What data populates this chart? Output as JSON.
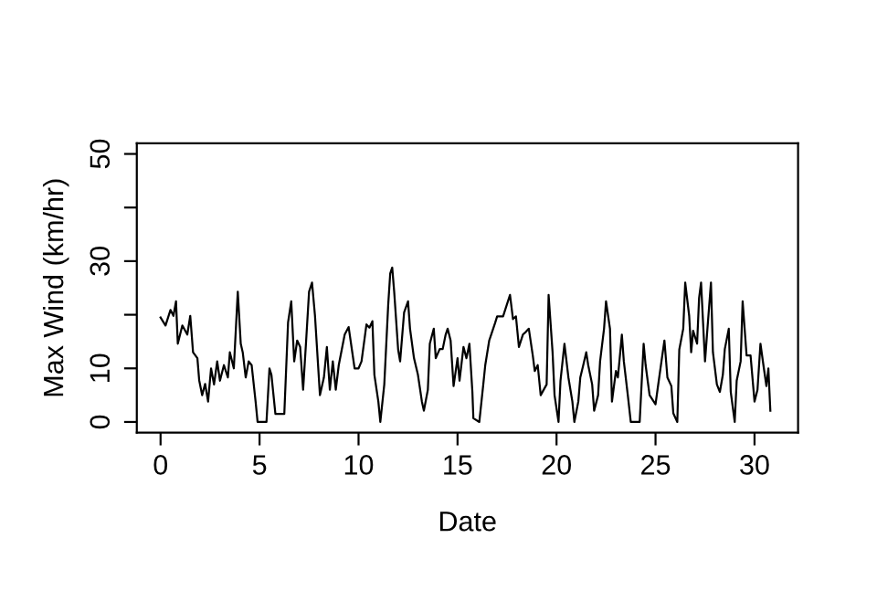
{
  "chart_data": {
    "type": "line",
    "xlabel": "Date",
    "ylabel": "Max Wind (km/hr)",
    "x": [
      0,
      0.25,
      0.5,
      0.65,
      0.78,
      0.87,
      1.1,
      1.35,
      1.5,
      1.64,
      1.86,
      1.95,
      2.1,
      2.25,
      2.4,
      2.55,
      2.7,
      2.86,
      3.0,
      3.2,
      3.4,
      3.5,
      3.7,
      3.9,
      4.05,
      4.15,
      4.3,
      4.45,
      4.6,
      4.8,
      4.9,
      5.35,
      5.5,
      5.6,
      5.8,
      6.25,
      6.44,
      6.6,
      6.75,
      6.9,
      7.05,
      7.2,
      7.35,
      7.5,
      7.65,
      7.8,
      8.05,
      8.25,
      8.4,
      8.55,
      8.7,
      8.85,
      9.0,
      9.3,
      9.5,
      9.8,
      10.0,
      10.15,
      10.4,
      10.55,
      10.7,
      10.8,
      11.0,
      11.1,
      11.3,
      11.5,
      11.6,
      11.7,
      11.8,
      12.0,
      12.1,
      12.3,
      12.5,
      12.6,
      12.8,
      13.0,
      13.2,
      13.3,
      13.5,
      13.6,
      13.8,
      13.9,
      14.1,
      14.25,
      14.4,
      14.5,
      14.65,
      14.8,
      15.0,
      15.1,
      15.3,
      15.45,
      15.6,
      15.75,
      15.8,
      16.1,
      16.3,
      16.4,
      16.6,
      16.7,
      16.9,
      17.0,
      17.3,
      17.5,
      17.65,
      17.8,
      17.95,
      18.1,
      18.3,
      18.45,
      18.6,
      18.8,
      18.9,
      19.05,
      19.2,
      19.5,
      19.6,
      19.8,
      19.9,
      20.1,
      20.2,
      20.4,
      20.6,
      20.8,
      20.9,
      21.1,
      21.2,
      21.35,
      21.5,
      21.6,
      21.8,
      21.9,
      22.1,
      22.2,
      22.4,
      22.5,
      22.7,
      22.8,
      23.0,
      23.1,
      23.3,
      23.4,
      23.6,
      23.75,
      24.2,
      24.4,
      24.5,
      24.7,
      25.0,
      25.1,
      25.3,
      25.45,
      25.6,
      25.8,
      25.9,
      26.1,
      26.2,
      26.4,
      26.5,
      26.7,
      26.8,
      26.9,
      27.1,
      27.2,
      27.3,
      27.5,
      27.6,
      27.8,
      27.9,
      28.1,
      28.25,
      28.4,
      28.5,
      28.7,
      28.8,
      29.0,
      29.1,
      29.3,
      29.4,
      29.6,
      29.8,
      30.0,
      30.15,
      30.3,
      30.45,
      30.6,
      30.7,
      30.8
    ],
    "values": [
      19.5,
      18,
      20.9,
      19.8,
      22.5,
      14.6,
      18,
      16.3,
      19.8,
      13,
      11.9,
      7.8,
      5,
      7.1,
      3.8,
      10,
      7,
      11.3,
      7.7,
      10.6,
      8.3,
      13,
      10,
      24.3,
      14.6,
      13,
      8.3,
      11.3,
      10.6,
      3.8,
      0,
      0,
      10,
      8.8,
      1.5,
      1.5,
      18.6,
      22.5,
      11.3,
      15.2,
      14,
      6,
      15,
      24.3,
      26,
      19.8,
      5,
      8.3,
      14,
      6,
      11.3,
      6,
      10.6,
      16.3,
      17.7,
      10,
      10,
      11.3,
      18.2,
      17.6,
      18.8,
      8.8,
      3.8,
      0,
      7,
      22,
      27.7,
      28.8,
      24.3,
      13.5,
      11.3,
      20.4,
      22.5,
      17.4,
      11.9,
      8.8,
      3.8,
      2.1,
      6,
      14.6,
      17.4,
      11.9,
      13.6,
      13.6,
      16.3,
      17.4,
      15.2,
      6.7,
      11.9,
      7.7,
      14,
      11.9,
      14.6,
      5.6,
      0.7,
      0,
      7,
      10.6,
      15.2,
      16.3,
      18.5,
      19.7,
      19.7,
      22,
      23.7,
      19.2,
      19.7,
      14,
      16.3,
      16.8,
      17.4,
      12.4,
      9.5,
      10.6,
      5,
      7,
      23.7,
      13,
      5,
      0,
      7.7,
      14.6,
      8.3,
      3.8,
      0,
      3.8,
      8.3,
      10.6,
      13,
      10.6,
      7,
      2.1,
      5,
      11.3,
      17.4,
      22.5,
      17.4,
      3.8,
      9.5,
      8.3,
      16.3,
      11.3,
      5,
      0,
      0,
      14.6,
      10.6,
      5,
      3.3,
      6,
      11.3,
      15.2,
      8.3,
      6.7,
      1.6,
      0,
      13.5,
      17.4,
      26,
      19.8,
      13,
      17,
      14.6,
      23.1,
      26,
      11.3,
      16.3,
      26,
      13,
      7,
      5.6,
      8.8,
      13.6,
      17.4,
      5.6,
      0,
      7.7,
      11.3,
      22.5,
      12.4,
      12.4,
      3.8,
      6,
      14.6,
      10.6,
      6.7,
      10,
      2.1
    ],
    "color": "#000000",
    "line_style": "solid",
    "marker": "none",
    "xlim": [
      -1.2,
      32.2
    ],
    "ylim": [
      -2,
      52
    ],
    "xticks": [
      0,
      5,
      10,
      15,
      20,
      25,
      30
    ],
    "yticks": [
      0,
      10,
      {
        "value": 20,
        "label": null
      },
      30,
      {
        "value": 40,
        "label": null
      },
      50
    ],
    "grid": false,
    "legend": false
  }
}
